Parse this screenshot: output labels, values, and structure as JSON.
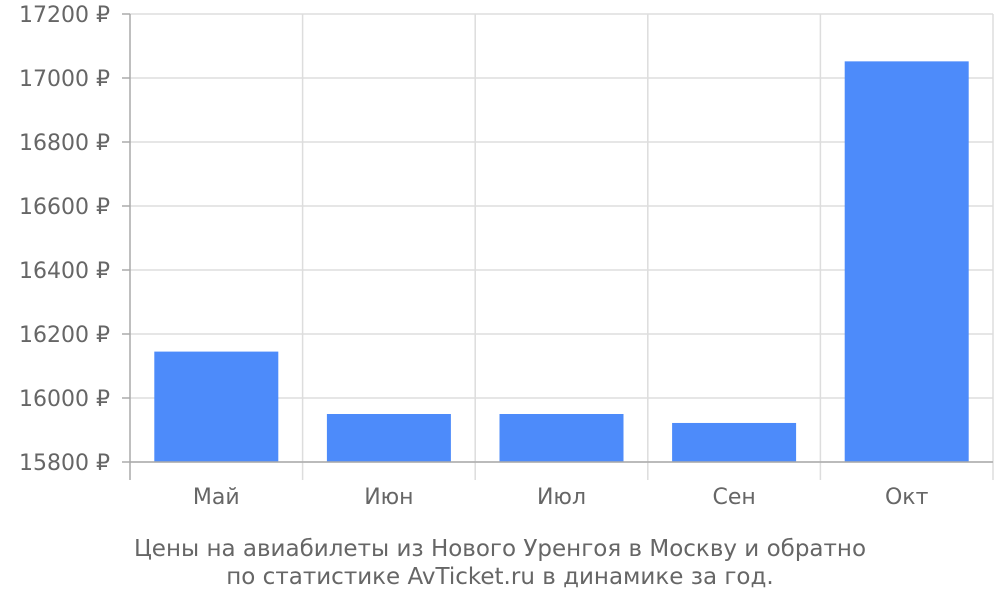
{
  "chart_data": {
    "type": "bar",
    "categories": [
      "Май",
      "Июн",
      "Июл",
      "Сен",
      "Окт"
    ],
    "values": [
      16145,
      15950,
      15950,
      15922,
      17052
    ],
    "ylim": [
      15800,
      17200
    ],
    "yticks": [
      15800,
      16000,
      16200,
      16400,
      16600,
      16800,
      17000,
      17200
    ],
    "ytick_labels": [
      "15800 ₽",
      "16000 ₽",
      "16200 ₽",
      "16400 ₽",
      "16600 ₽",
      "16800 ₽",
      "17000 ₽",
      "17200 ₽"
    ],
    "grid": true,
    "bar_color": "#4d8bfa",
    "caption": [
      "Цены на авиабилеты из Нового Уренгоя в Москву и обратно",
      "по статистике AvTicket.ru в динамике за год."
    ]
  }
}
